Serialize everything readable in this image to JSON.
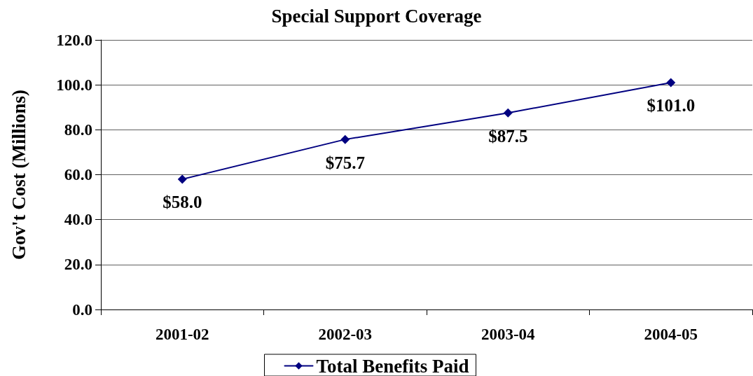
{
  "chart_data": {
    "type": "line",
    "title": "Special Support Coverage",
    "ylabel": "Gov't Cost (Millions)",
    "categories": [
      "2001-02",
      "2002-03",
      "2003-04",
      "2004-05"
    ],
    "series": [
      {
        "name": "Total Benefits Paid",
        "color": "#000080",
        "values": [
          58.0,
          75.7,
          87.5,
          101.0
        ],
        "value_labels": [
          "$58.0",
          "$75.7",
          "$87.5",
          "$101.0"
        ]
      }
    ],
    "ylim": [
      0,
      120
    ],
    "yticks": [
      {
        "value": 0,
        "label": "0.0"
      },
      {
        "value": 20,
        "label": "20.0"
      },
      {
        "value": 40,
        "label": "40.0"
      },
      {
        "value": 60,
        "label": "60.0"
      },
      {
        "value": 80,
        "label": "80.0"
      },
      {
        "value": 100,
        "label": "100.0"
      },
      {
        "value": 120,
        "label": "120.0"
      }
    ],
    "grid": "y",
    "legend": "bottom",
    "marker": "diamond",
    "line_style": "solid"
  }
}
